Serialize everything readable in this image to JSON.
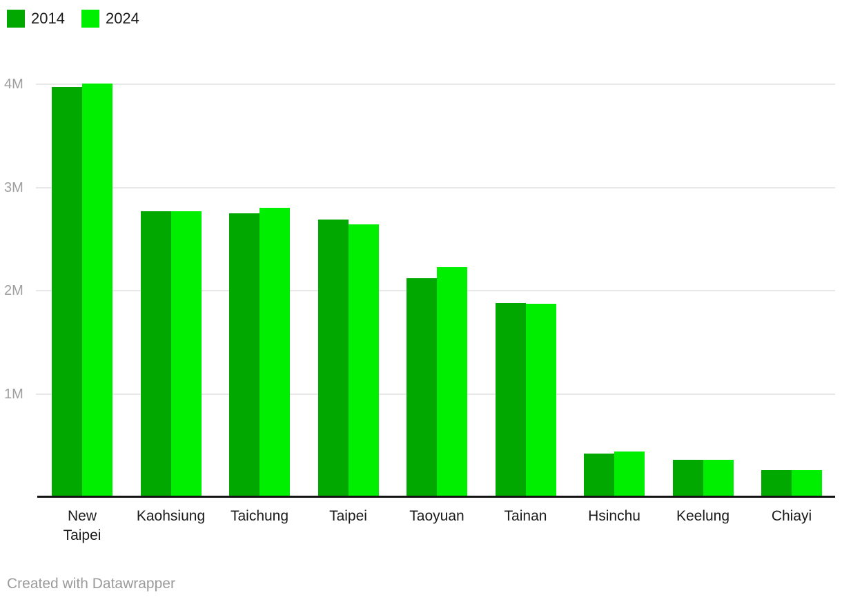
{
  "legend": {
    "items": [
      {
        "label": "2014",
        "color": "#00a800"
      },
      {
        "label": "2024",
        "color": "#00ee00"
      }
    ]
  },
  "footer": {
    "attribution": "Created with Datawrapper"
  },
  "chart_data": {
    "type": "bar",
    "title": "",
    "xlabel": "",
    "ylabel": "",
    "value_unit": "M",
    "categories": [
      "New Taipei",
      "Kaohsiung",
      "Taichung",
      "Taipei",
      "Taoyuan",
      "Tainan",
      "Hsinchu",
      "Keelung",
      "Chiayi"
    ],
    "category_label_lines": [
      [
        "New",
        "Taipei"
      ],
      [
        "Kaohsiung"
      ],
      [
        "Taichung"
      ],
      [
        "Taipei"
      ],
      [
        "Taoyuan"
      ],
      [
        "Tainan"
      ],
      [
        "Hsinchu"
      ],
      [
        "Keelung"
      ],
      [
        "Chiayi"
      ]
    ],
    "series": [
      {
        "name": "2014",
        "color": "#00a800",
        "values": [
          3.97,
          2.77,
          2.75,
          2.69,
          2.12,
          1.88,
          0.42,
          0.36,
          0.26
        ]
      },
      {
        "name": "2024",
        "color": "#00ee00",
        "values": [
          4.01,
          2.77,
          2.8,
          2.64,
          2.23,
          1.87,
          0.44,
          0.36,
          0.26
        ]
      }
    ],
    "ylim": [
      0,
      4.3
    ],
    "yticks": [
      {
        "value": 4,
        "label": "4M"
      },
      {
        "value": 3,
        "label": "3M"
      },
      {
        "value": 2,
        "label": "2M"
      },
      {
        "value": 1,
        "label": "1M"
      }
    ],
    "grid": true,
    "legend_position": "top-left"
  }
}
